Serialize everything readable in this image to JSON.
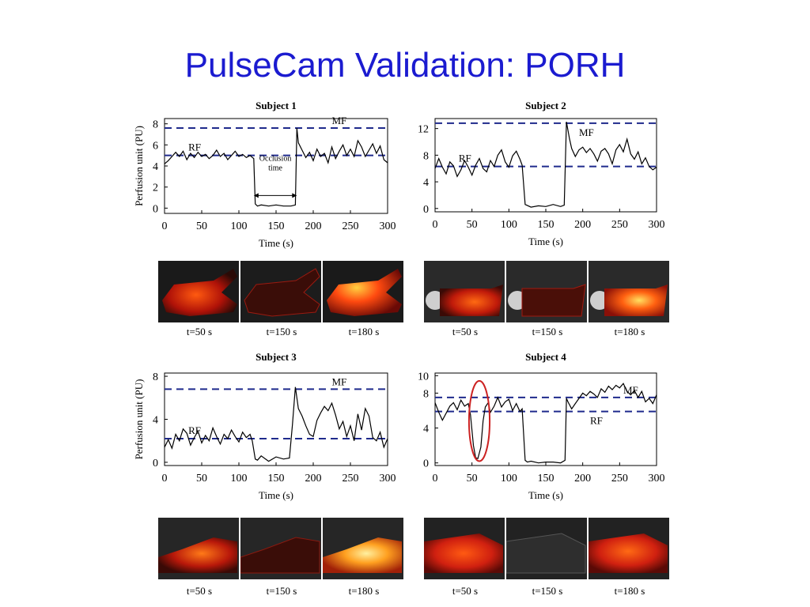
{
  "slide": {
    "title": "PulseCam Validation: PORH"
  },
  "colors": {
    "ref_line": "#1f2a8c",
    "trace": "#000000",
    "highlight": "#cc2222",
    "title": "#1b1bd0"
  },
  "chart_data": [
    {
      "type": "line",
      "title": "Subject 1",
      "xlabel": "Time (s)",
      "ylabel": "Perfusion unit (PU)",
      "xlim": [
        0,
        300
      ],
      "ylim": [
        -0.5,
        8.5
      ],
      "xticks": [
        0,
        50,
        100,
        150,
        200,
        250,
        300
      ],
      "yticks": [
        0,
        2,
        4,
        6,
        8
      ],
      "ref_lines": [
        {
          "label": "MF",
          "y": 7.6
        },
        {
          "label": "RF",
          "y": 5.0
        }
      ],
      "annotation": {
        "text": [
          "Occlusion",
          "time"
        ],
        "x_start": 120,
        "x_end": 178
      },
      "series": [
        {
          "x": [
            0,
            5,
            10,
            15,
            20,
            25,
            30,
            35,
            40,
            45,
            50,
            55,
            60,
            65,
            70,
            75,
            80,
            85,
            90,
            95,
            100,
            105,
            110,
            115,
            120,
            122,
            125,
            130,
            140,
            150,
            160,
            170,
            176,
            178,
            180,
            185,
            190,
            195,
            200,
            205,
            210,
            215,
            220,
            225,
            230,
            235,
            240,
            245,
            250,
            255,
            260,
            265,
            270,
            275,
            280,
            285,
            290,
            295,
            300
          ],
          "y": [
            4.2,
            4.5,
            4.9,
            5.3,
            4.9,
            5.4,
            4.6,
            5.2,
            4.8,
            5.3,
            4.9,
            5.1,
            4.7,
            5.0,
            5.5,
            4.9,
            5.2,
            4.6,
            5.0,
            5.4,
            4.9,
            5.1,
            4.8,
            5.0,
            4.7,
            0.4,
            0.2,
            0.3,
            0.2,
            0.3,
            0.2,
            0.2,
            0.3,
            7.6,
            6.2,
            5.5,
            4.8,
            5.3,
            4.5,
            5.6,
            4.9,
            5.2,
            4.3,
            5.8,
            4.7,
            5.4,
            6.0,
            5.0,
            5.6,
            4.9,
            6.4,
            5.8,
            4.9,
            5.5,
            6.1,
            5.2,
            5.9,
            4.6,
            4.3
          ]
        }
      ]
    },
    {
      "type": "line",
      "title": "Subject 2",
      "xlabel": "Time (s)",
      "ylabel": "",
      "xlim": [
        0,
        300
      ],
      "ylim": [
        -0.5,
        13.5
      ],
      "xticks": [
        0,
        50,
        100,
        150,
        200,
        250,
        300
      ],
      "yticks": [
        0,
        4,
        8,
        12
      ],
      "ref_lines": [
        {
          "label": "MF",
          "y": 12.8
        },
        {
          "label": "RF",
          "y": 6.3
        }
      ],
      "series": [
        {
          "x": [
            0,
            5,
            10,
            15,
            20,
            25,
            30,
            35,
            40,
            45,
            50,
            55,
            60,
            65,
            70,
            75,
            80,
            85,
            90,
            95,
            100,
            105,
            110,
            115,
            118,
            122,
            130,
            140,
            150,
            160,
            170,
            175,
            178,
            182,
            185,
            190,
            195,
            200,
            205,
            210,
            215,
            220,
            225,
            230,
            235,
            240,
            245,
            250,
            255,
            260,
            265,
            270,
            275,
            280,
            285,
            290,
            295,
            300
          ],
          "y": [
            6.0,
            7.5,
            6.2,
            5.2,
            7.0,
            6.4,
            4.8,
            5.8,
            7.2,
            6.2,
            5.0,
            6.5,
            7.5,
            6.0,
            5.5,
            7.2,
            6.3,
            8.0,
            8.8,
            7.0,
            6.2,
            7.9,
            8.6,
            7.4,
            6.5,
            0.6,
            0.2,
            0.4,
            0.3,
            0.6,
            0.3,
            0.5,
            13.0,
            10.5,
            9.0,
            7.8,
            8.8,
            9.2,
            8.4,
            9.0,
            8.2,
            7.1,
            8.6,
            9.0,
            8.2,
            6.7,
            8.8,
            9.6,
            8.5,
            10.4,
            8.2,
            7.4,
            8.5,
            6.7,
            7.6,
            6.3,
            5.8,
            6.2
          ]
        }
      ]
    },
    {
      "type": "line",
      "title": "Subject 3",
      "xlabel": "Time (s)",
      "ylabel": "Perfusion unit (PU)",
      "xlim": [
        0,
        300
      ],
      "ylim": [
        -0.3,
        8.3
      ],
      "xticks": [
        0,
        50,
        100,
        150,
        200,
        250,
        300
      ],
      "yticks": [
        0,
        4,
        8
      ],
      "ref_lines": [
        {
          "label": "MF",
          "y": 6.8
        },
        {
          "label": "RF",
          "y": 2.2
        }
      ],
      "series": [
        {
          "x": [
            0,
            5,
            10,
            15,
            20,
            25,
            30,
            35,
            40,
            45,
            50,
            55,
            60,
            65,
            70,
            75,
            80,
            85,
            90,
            95,
            100,
            105,
            110,
            115,
            118,
            122,
            125,
            130,
            140,
            150,
            160,
            168,
            172,
            176,
            180,
            185,
            190,
            195,
            200,
            205,
            210,
            215,
            220,
            225,
            230,
            235,
            240,
            245,
            250,
            255,
            260,
            265,
            270,
            275,
            280,
            285,
            290,
            295,
            300
          ],
          "y": [
            1.4,
            2.1,
            1.3,
            2.6,
            2.0,
            3.1,
            2.7,
            1.6,
            2.3,
            2.9,
            1.8,
            2.5,
            2.0,
            3.2,
            2.4,
            1.7,
            2.6,
            2.2,
            3.0,
            2.4,
            1.9,
            2.8,
            2.3,
            2.6,
            2.0,
            0.3,
            0.2,
            0.6,
            0.1,
            0.5,
            0.3,
            0.4,
            3.5,
            7.0,
            5.0,
            4.3,
            3.4,
            2.6,
            2.4,
            3.9,
            4.6,
            5.2,
            4.8,
            5.5,
            4.4,
            3.1,
            3.8,
            2.4,
            3.4,
            2.0,
            4.5,
            3.0,
            5.0,
            4.3,
            2.3,
            2.0,
            2.8,
            1.4,
            2.2
          ]
        }
      ]
    },
    {
      "type": "line",
      "title": "Subject 4",
      "xlabel": "Time (s)",
      "ylabel": "",
      "xlim": [
        0,
        300
      ],
      "ylim": [
        -0.3,
        10.3
      ],
      "xticks": [
        0,
        50,
        100,
        150,
        200,
        250,
        300
      ],
      "yticks": [
        0,
        4,
        8,
        10
      ],
      "ref_lines": [
        {
          "label": "MF",
          "y": 7.5
        },
        {
          "label": "RF",
          "y": 5.9
        }
      ],
      "highlight_ellipse": {
        "x_center": 60,
        "y_center": 4.8,
        "x_radius": 14,
        "y_radius": 4.6
      },
      "series": [
        {
          "x": [
            0,
            5,
            10,
            15,
            20,
            25,
            30,
            35,
            40,
            45,
            48,
            52,
            55,
            58,
            62,
            65,
            68,
            72,
            75,
            80,
            85,
            90,
            95,
            100,
            105,
            110,
            115,
            118,
            122,
            125,
            130,
            140,
            150,
            160,
            170,
            176,
            178,
            180,
            185,
            190,
            195,
            200,
            205,
            210,
            215,
            220,
            225,
            230,
            235,
            240,
            245,
            250,
            255,
            260,
            265,
            270,
            275,
            280,
            285,
            290,
            295,
            300
          ],
          "y": [
            6.9,
            5.8,
            4.9,
            5.7,
            6.5,
            6.9,
            6.1,
            7.2,
            6.5,
            6.8,
            5.5,
            2.0,
            0.6,
            0.5,
            1.8,
            4.8,
            6.4,
            6.9,
            5.8,
            6.5,
            7.5,
            6.4,
            7.0,
            7.3,
            6.0,
            6.8,
            5.9,
            6.2,
            0.3,
            0.1,
            0.2,
            0.0,
            0.1,
            0.1,
            0.0,
            0.3,
            7.4,
            7.0,
            6.2,
            6.8,
            7.4,
            8.0,
            7.7,
            8.2,
            7.9,
            7.5,
            8.5,
            8.1,
            8.8,
            8.4,
            8.9,
            8.6,
            9.1,
            8.2,
            7.8,
            8.3,
            7.5,
            8.2,
            7.0,
            7.4,
            6.8,
            7.8
          ]
        }
      ]
    }
  ],
  "images": [
    {
      "captions": [
        "t=50 s",
        "t=150 s",
        "t=180 s"
      ]
    },
    {
      "captions": [
        "t=50 s",
        "t=150 s",
        "t=180 s"
      ]
    },
    {
      "captions": [
        "t=50 s",
        "t=150 s",
        "t=180 s"
      ]
    },
    {
      "captions": [
        "t=50 s",
        "t=150 s",
        "t=180 s"
      ]
    }
  ]
}
